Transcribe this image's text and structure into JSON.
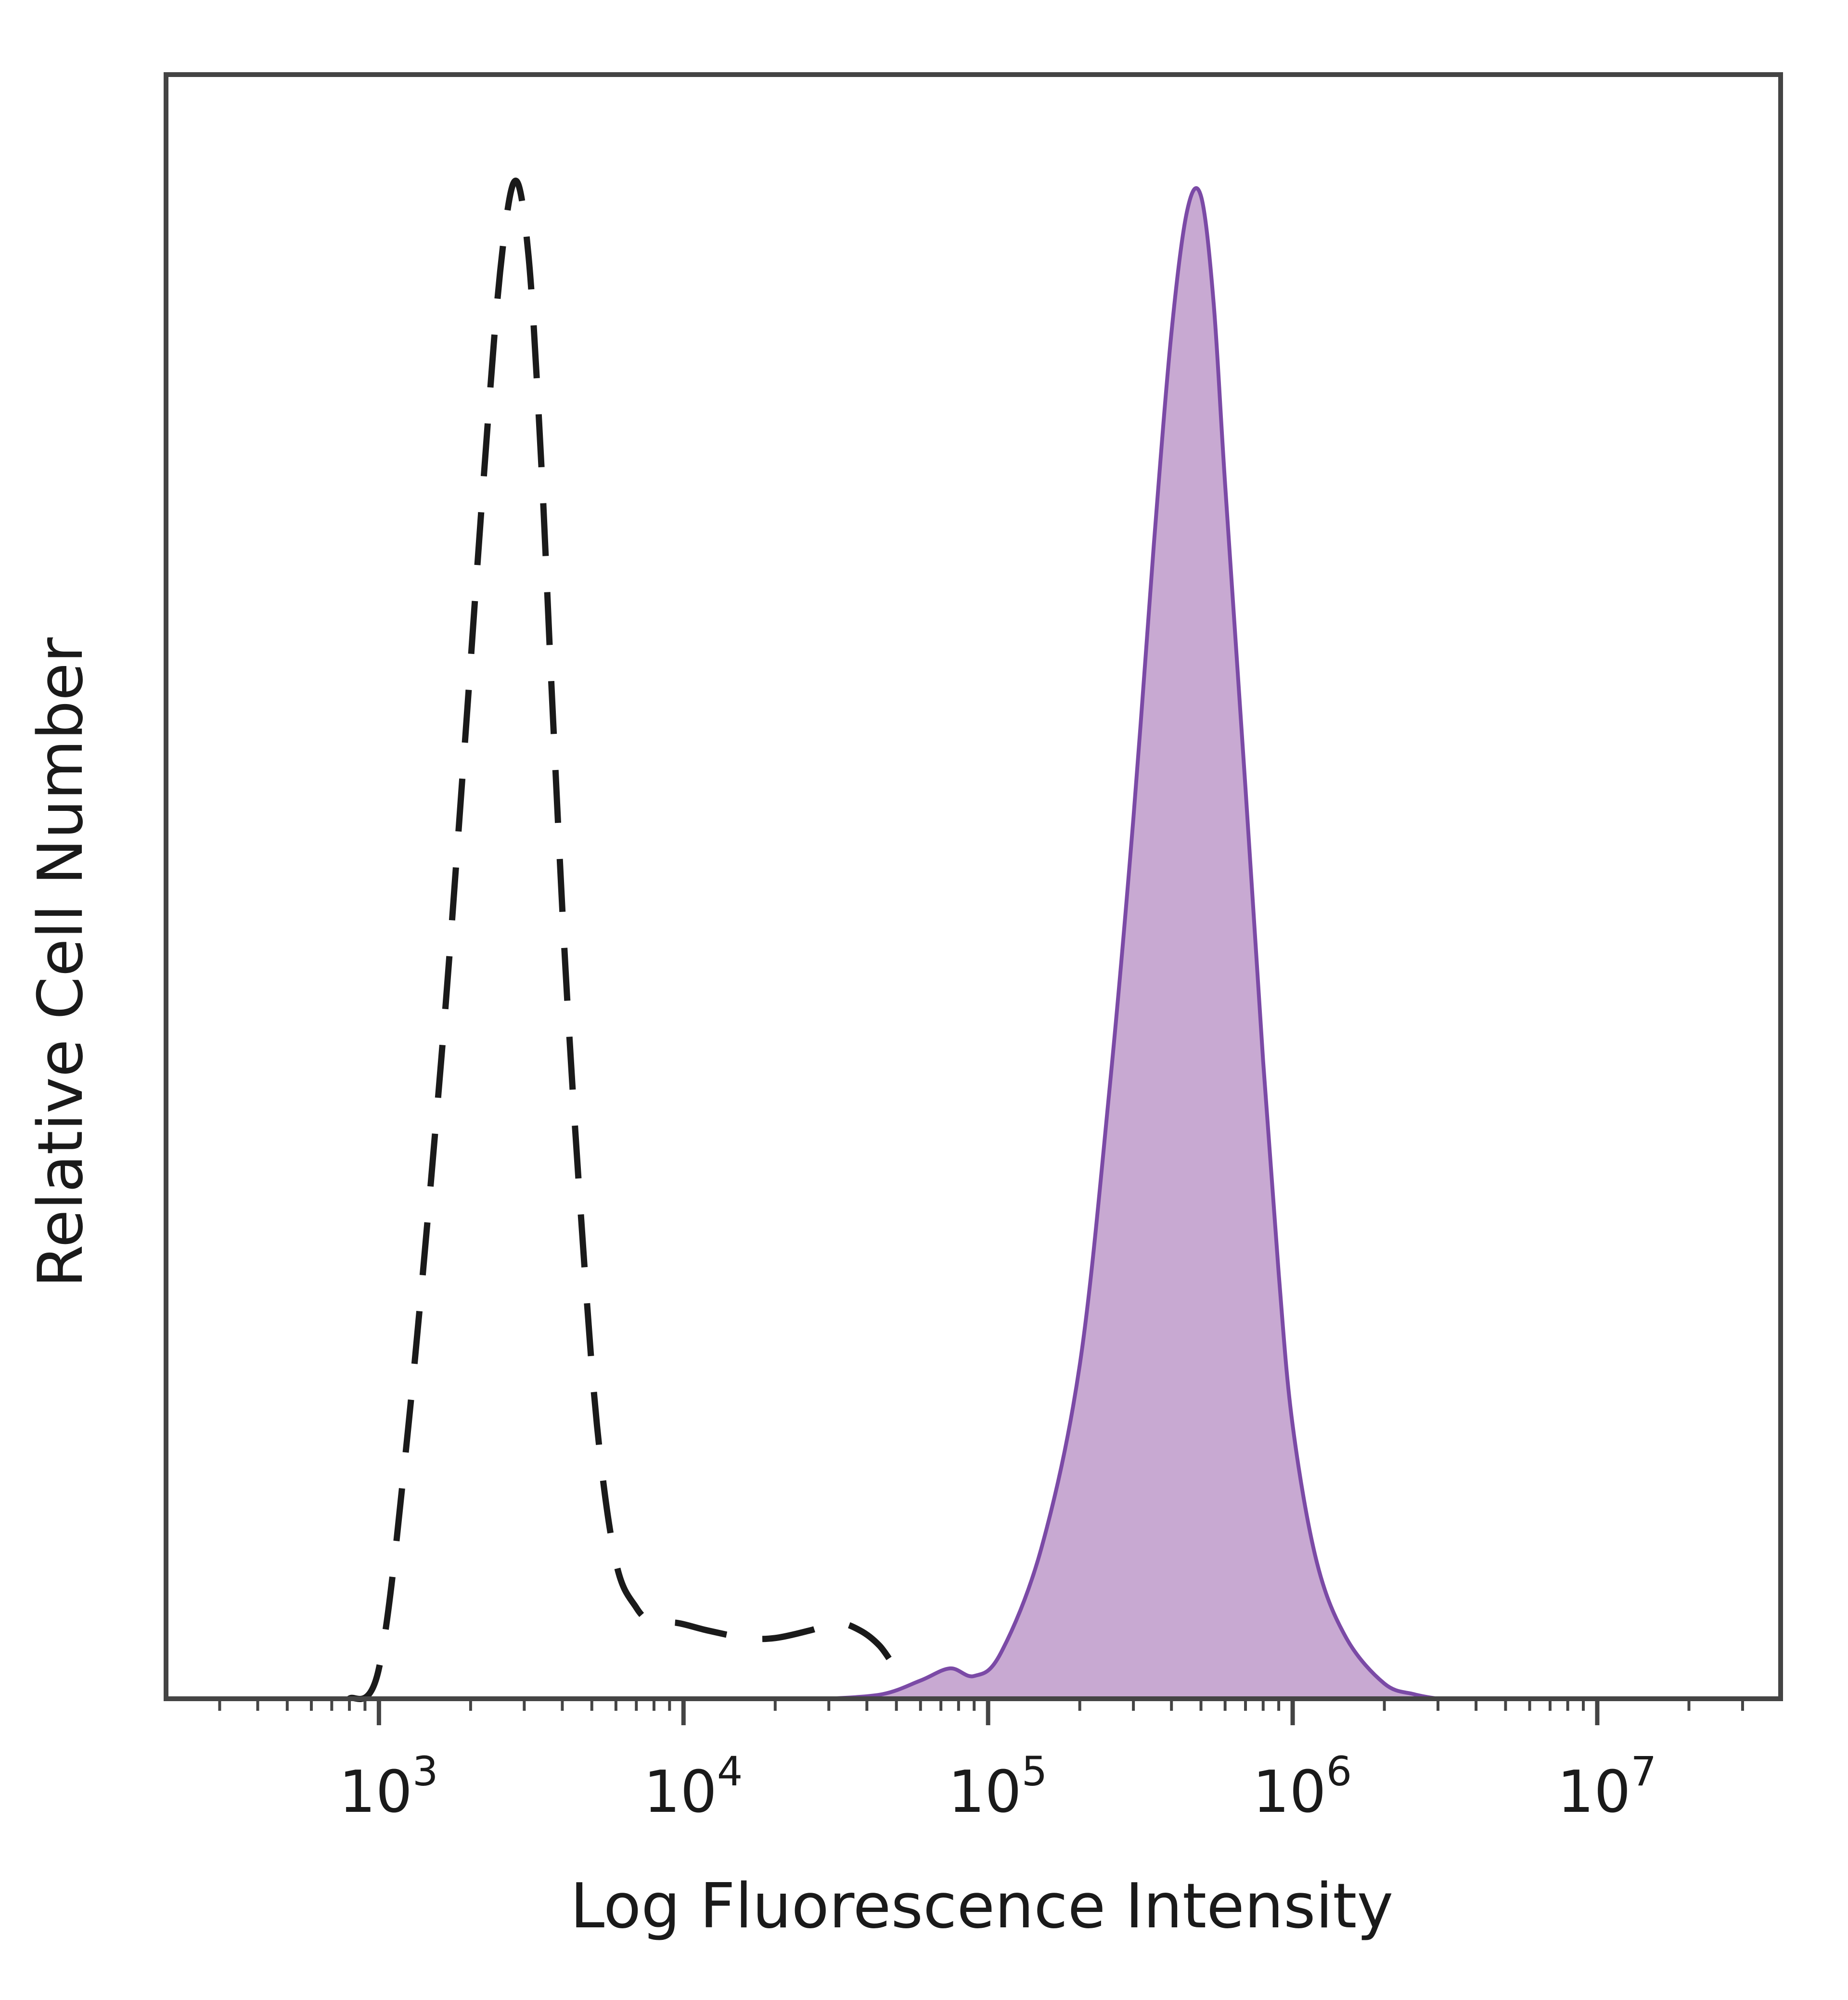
{
  "chart_data": {
    "type": "area",
    "xlabel": "Log Fluorescence Intensity",
    "ylabel": "Relative Cell Number",
    "x_scale": "log",
    "xlim": [
      200,
      40000000
    ],
    "ylim": [
      0,
      1.07
    ],
    "x_ticks": [
      {
        "value": 1000,
        "base": "10",
        "exp": "3"
      },
      {
        "value": 10000,
        "base": "10",
        "exp": "4"
      },
      {
        "value": 100000,
        "base": "10",
        "exp": "5"
      },
      {
        "value": 1000000,
        "base": "10",
        "exp": "6"
      },
      {
        "value": 10000000,
        "base": "10",
        "exp": "7"
      }
    ],
    "grid": false,
    "legend": "none",
    "series": [
      {
        "style": "dashed",
        "color": "#1a1a1a",
        "filled": false,
        "x": [
          800,
          1000,
          1250,
          1600,
          1900,
          2200,
          2500,
          2800,
          3100,
          3400,
          3700,
          4100,
          4600,
          5200,
          6000,
          7000,
          8000,
          9500,
          12000,
          16000,
          20000,
          26000,
          32000,
          38000,
          44000,
          50000,
          55000
        ],
        "y": [
          0.0,
          0.02,
          0.18,
          0.42,
          0.62,
          0.8,
          0.94,
          1.0,
          0.95,
          0.82,
          0.66,
          0.48,
          0.32,
          0.18,
          0.09,
          0.06,
          0.05,
          0.05,
          0.045,
          0.04,
          0.04,
          0.045,
          0.05,
          0.045,
          0.035,
          0.02,
          0.015
        ]
      },
      {
        "style": "solid",
        "color": "#7b4aa6",
        "fill": "#c8a9d2",
        "filled": true,
        "x": [
          30000,
          45000,
          60000,
          75000,
          90000,
          110000,
          150000,
          200000,
          250000,
          300000,
          350000,
          400000,
          450000,
          500000,
          550000,
          600000,
          700000,
          800000,
          900000,
          1000000,
          1200000,
          1500000,
          2000000,
          2500000,
          3000000
        ],
        "y": [
          0.0,
          0.003,
          0.012,
          0.02,
          0.015,
          0.03,
          0.1,
          0.22,
          0.4,
          0.58,
          0.76,
          0.9,
          0.98,
          0.99,
          0.92,
          0.8,
          0.6,
          0.42,
          0.28,
          0.18,
          0.09,
          0.04,
          0.01,
          0.003,
          0.0
        ]
      }
    ]
  }
}
